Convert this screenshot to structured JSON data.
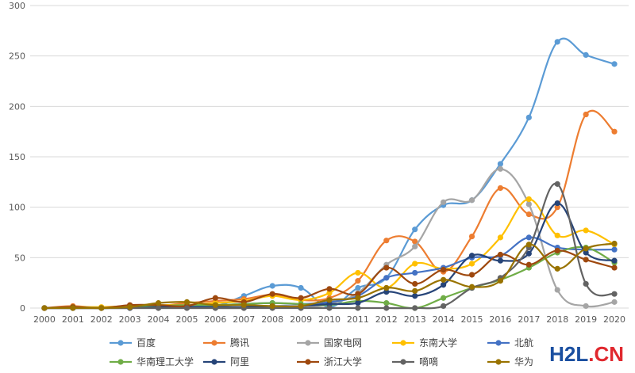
{
  "chart_data": {
    "type": "line",
    "smooth": true,
    "title": "",
    "xlabel": "",
    "ylabel": "",
    "ylim": [
      0,
      300
    ],
    "yticks": [
      0,
      50,
      100,
      150,
      200,
      250,
      300
    ],
    "grid": "horizontal",
    "legend_position": "bottom",
    "categories": [
      "2000",
      "2001",
      "2002",
      "2003",
      "2004",
      "2005",
      "2006",
      "2007",
      "2008",
      "2009",
      "2010",
      "2011",
      "2012",
      "2013",
      "2014",
      "2015",
      "2016",
      "2017",
      "2018",
      "2019",
      "2020"
    ],
    "series": [
      {
        "name": "百度",
        "color": "#5b9bd5",
        "values": [
          0,
          1,
          0,
          1,
          3,
          2,
          2,
          12,
          22,
          20,
          1,
          20,
          30,
          78,
          102,
          107,
          143,
          189,
          264,
          251,
          242
        ]
      },
      {
        "name": "腾讯",
        "color": "#ed7d31",
        "values": [
          0,
          2,
          0,
          1,
          2,
          5,
          7,
          9,
          13,
          8,
          10,
          27,
          67,
          66,
          36,
          71,
          119,
          93,
          100,
          192,
          175
        ]
      },
      {
        "name": "国家电网",
        "color": "#a5a5a5",
        "values": [
          0,
          0,
          0,
          0,
          0,
          0,
          0,
          0,
          2,
          0,
          4,
          15,
          43,
          61,
          105,
          107,
          138,
          103,
          18,
          2,
          6
        ]
      },
      {
        "name": "东南大学",
        "color": "#ffc000",
        "values": [
          0,
          1,
          1,
          2,
          3,
          3,
          5,
          7,
          12,
          8,
          15,
          35,
          20,
          44,
          39,
          44,
          70,
          108,
          72,
          77,
          63
        ]
      },
      {
        "name": "北航",
        "color": "#4472c4",
        "values": [
          0,
          0,
          0,
          1,
          2,
          2,
          3,
          4,
          5,
          4,
          6,
          12,
          30,
          35,
          40,
          50,
          52,
          70,
          60,
          58,
          58
        ]
      },
      {
        "name": "华南理工大学",
        "color": "#70ad47",
        "values": [
          0,
          1,
          0,
          1,
          2,
          3,
          3,
          4,
          5,
          4,
          3,
          7,
          5,
          0,
          10,
          20,
          28,
          40,
          55,
          60,
          45
        ]
      },
      {
        "name": "阿里",
        "color": "#264478",
        "values": [
          0,
          0,
          0,
          0,
          1,
          1,
          1,
          1,
          2,
          2,
          4,
          5,
          16,
          12,
          23,
          52,
          47,
          54,
          104,
          55,
          47
        ]
      },
      {
        "name": "浙江大学",
        "color": "#9e480e",
        "values": [
          0,
          1,
          0,
          3,
          3,
          2,
          10,
          6,
          14,
          10,
          19,
          14,
          40,
          24,
          38,
          33,
          53,
          43,
          57,
          48,
          40
        ]
      },
      {
        "name": "嘀嘀",
        "color": "#636363",
        "values": [
          0,
          0,
          0,
          0,
          0,
          0,
          0,
          0,
          0,
          0,
          0,
          0,
          0,
          0,
          2,
          20,
          30,
          60,
          123,
          24,
          14
        ]
      },
      {
        "name": "华为",
        "color": "#997300",
        "values": [
          0,
          0,
          0,
          1,
          5,
          6,
          3,
          3,
          2,
          2,
          8,
          10,
          20,
          17,
          28,
          21,
          27,
          63,
          39,
          59,
          64
        ]
      }
    ]
  },
  "watermark": {
    "part_a": "H2L",
    "part_b": ".CN"
  }
}
